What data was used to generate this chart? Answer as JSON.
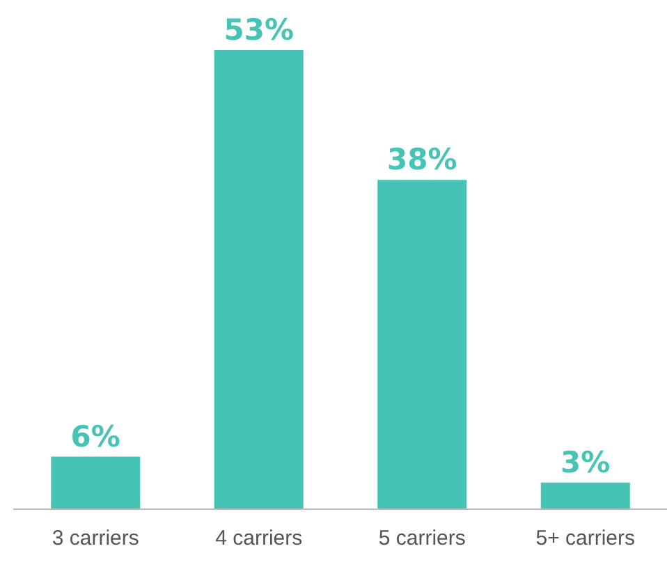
{
  "chart_data": {
    "type": "bar",
    "categories": [
      "3 carriers",
      "4 carriers",
      "5 carriers",
      "5+ carriers"
    ],
    "values": [
      6,
      53,
      38,
      3
    ],
    "color": "#45c4b5",
    "value_labels": [
      "6%",
      "53%",
      "38%",
      "3%"
    ]
  }
}
